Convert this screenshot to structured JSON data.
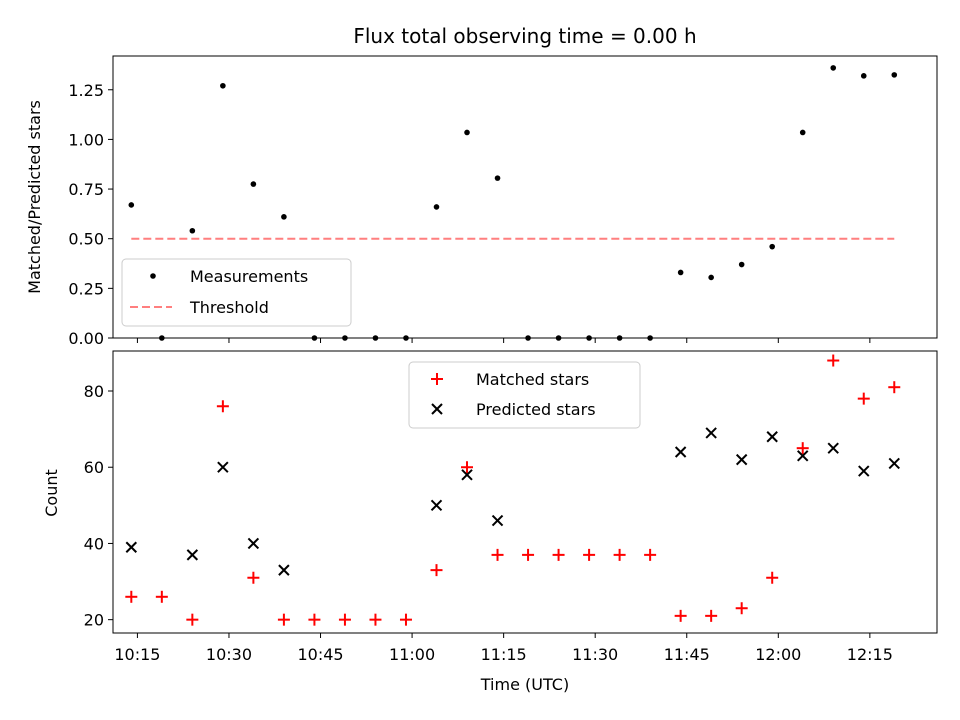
{
  "chart_data": [
    {
      "type": "scatter",
      "title": "Flux total observing time = 0.00 h",
      "xlabel": "",
      "ylabel": "Matched/Predicted stars",
      "ylim": [
        0.0,
        1.42
      ],
      "xlim": [
        "10:11",
        "12:26"
      ],
      "yticks": [
        "0.00",
        "0.25",
        "0.50",
        "0.75",
        "1.00",
        "1.25"
      ],
      "legend_placement": "lower-left",
      "series": [
        {
          "name": "Measurements",
          "marker": "dot",
          "color": "#000000",
          "x": [
            "10:14",
            "10:19",
            "10:24",
            "10:29",
            "10:34",
            "10:39",
            "10:44",
            "10:49",
            "10:54",
            "10:59",
            "11:04",
            "11:09",
            "11:14",
            "11:19",
            "11:24",
            "11:29",
            "11:34",
            "11:39",
            "11:44",
            "11:49",
            "11:54",
            "11:59",
            "12:04",
            "12:09",
            "12:14",
            "12:19"
          ],
          "values": [
            0.67,
            0.0,
            0.54,
            1.27,
            0.775,
            0.61,
            0.0,
            0.0,
            0.0,
            0.0,
            0.66,
            1.035,
            0.805,
            0.0,
            0.0,
            0.0,
            0.0,
            0.0,
            0.33,
            0.305,
            0.37,
            0.46,
            1.035,
            1.36,
            1.32,
            1.325
          ]
        },
        {
          "name": "Threshold",
          "marker": "dashed-line",
          "color": "#ff7f7f",
          "x": [
            "10:14",
            "12:19"
          ],
          "values": [
            0.5,
            0.5
          ]
        }
      ]
    },
    {
      "type": "scatter",
      "title": "",
      "xlabel": "Time (UTC)",
      "ylabel": "Count",
      "ylim": [
        16.5,
        90.5
      ],
      "xlim": [
        "10:11",
        "12:26"
      ],
      "yticks": [
        "20",
        "40",
        "60",
        "80"
      ],
      "xticks": [
        "10:15",
        "10:30",
        "10:45",
        "11:00",
        "11:15",
        "11:30",
        "11:45",
        "12:00",
        "12:15"
      ],
      "legend_placement": "top-center",
      "series": [
        {
          "name": "Matched stars",
          "marker": "plus",
          "color": "#ff0000",
          "x": [
            "10:14",
            "10:19",
            "10:24",
            "10:29",
            "10:34",
            "10:39",
            "10:44",
            "10:49",
            "10:54",
            "10:59",
            "11:04",
            "11:09",
            "11:14",
            "11:19",
            "11:24",
            "11:29",
            "11:34",
            "11:39",
            "11:44",
            "11:49",
            "11:54",
            "11:59",
            "12:04",
            "12:09",
            "12:14",
            "12:19"
          ],
          "values": [
            26,
            26,
            20,
            76,
            31,
            20,
            20,
            20,
            20,
            20,
            33,
            60,
            37,
            37,
            37,
            37,
            37,
            37,
            21,
            21,
            23,
            31,
            65,
            88,
            78,
            81
          ]
        },
        {
          "name": "Predicted stars",
          "marker": "x",
          "color": "#000000",
          "x": [
            "10:14",
            "10:24",
            "10:29",
            "10:34",
            "10:39",
            "11:04",
            "11:09",
            "11:14",
            "11:44",
            "11:49",
            "11:54",
            "11:59",
            "12:04",
            "12:09",
            "12:14",
            "12:19"
          ],
          "values": [
            39,
            37,
            60,
            40,
            33,
            50,
            58,
            46,
            64,
            69,
            62,
            68,
            63,
            65,
            59,
            61
          ]
        }
      ]
    }
  ]
}
